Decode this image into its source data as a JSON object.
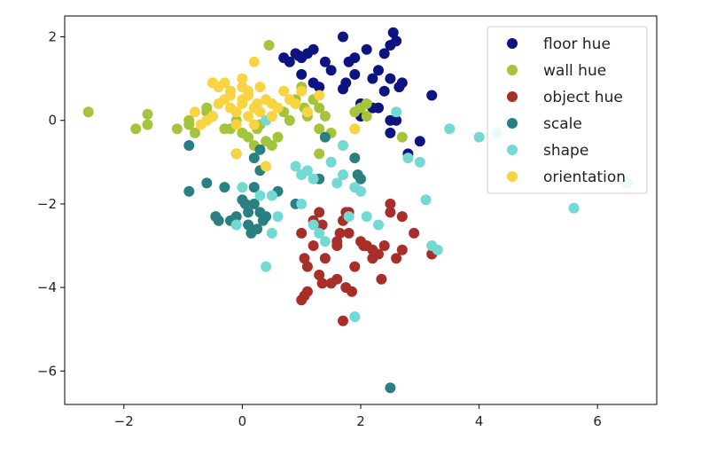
{
  "chart_data": {
    "type": "scatter",
    "title": "",
    "xlabel": "",
    "ylabel": "",
    "xlim": [
      -3.0,
      7.0
    ],
    "ylim": [
      -6.8,
      2.5
    ],
    "xticks": [
      -2,
      0,
      2,
      4,
      6
    ],
    "yticks": [
      2,
      0,
      -2,
      -4,
      -6
    ],
    "xtick_labels": [
      "−2",
      "0",
      "2",
      "4",
      "6"
    ],
    "ytick_labels": [
      "2",
      "0",
      "−2",
      "−4",
      "−6"
    ],
    "grid": false,
    "legend_position": "top-right",
    "series": [
      {
        "name": "floor hue",
        "color": "#0d1380",
        "points": [
          [
            0.9,
            1.6
          ],
          [
            0.95,
            1.55
          ],
          [
            1.1,
            1.6
          ],
          [
            1.2,
            1.7
          ],
          [
            1.4,
            1.4
          ],
          [
            0.7,
            1.5
          ],
          [
            0.8,
            1.4
          ],
          [
            1.0,
            1.5
          ],
          [
            1.5,
            1.2
          ],
          [
            1.7,
            2.0
          ],
          [
            1.8,
            1.4
          ],
          [
            1.9,
            1.5
          ],
          [
            2.1,
            1.7
          ],
          [
            2.3,
            1.2
          ],
          [
            2.4,
            1.6
          ],
          [
            2.5,
            1.8
          ],
          [
            2.55,
            2.1
          ],
          [
            2.6,
            1.9
          ],
          [
            2.5,
            1.0
          ],
          [
            2.65,
            0.8
          ],
          [
            2.7,
            0.9
          ],
          [
            2.4,
            0.7
          ],
          [
            1.75,
            0.9
          ],
          [
            1.7,
            0.75
          ],
          [
            2.0,
            0.4
          ],
          [
            2.2,
            0.3
          ],
          [
            2.3,
            0.3
          ],
          [
            3.2,
            0.6
          ],
          [
            1.3,
            0.8
          ],
          [
            1.2,
            0.9
          ],
          [
            1.0,
            1.1
          ],
          [
            2.0,
            0.1
          ],
          [
            2.5,
            0.0
          ],
          [
            2.6,
            0.0
          ],
          [
            2.5,
            -0.3
          ],
          [
            3.0,
            -0.5
          ],
          [
            2.8,
            -0.8
          ],
          [
            2.2,
            1.0
          ],
          [
            1.9,
            1.1
          ]
        ]
      },
      {
        "name": "wall hue",
        "color": "#a4c43c",
        "points": [
          [
            -2.6,
            0.2
          ],
          [
            -1.8,
            -0.2
          ],
          [
            -1.6,
            -0.1
          ],
          [
            -1.6,
            0.15
          ],
          [
            -1.1,
            -0.2
          ],
          [
            -0.9,
            -0.1
          ],
          [
            -0.9,
            0.0
          ],
          [
            -0.8,
            -0.3
          ],
          [
            -0.6,
            0.2
          ],
          [
            -0.6,
            0.3
          ],
          [
            -0.3,
            -0.2
          ],
          [
            -0.2,
            -0.2
          ],
          [
            -0.1,
            0.0
          ],
          [
            0.0,
            -0.3
          ],
          [
            0.1,
            -0.4
          ],
          [
            0.2,
            -0.6
          ],
          [
            0.25,
            -0.2
          ],
          [
            0.3,
            -0.1
          ],
          [
            0.4,
            -0.5
          ],
          [
            0.45,
            1.8
          ],
          [
            0.5,
            -0.6
          ],
          [
            0.6,
            -0.4
          ],
          [
            0.7,
            0.2
          ],
          [
            0.8,
            0.0
          ],
          [
            0.9,
            0.5
          ],
          [
            1.0,
            0.8
          ],
          [
            1.05,
            0.3
          ],
          [
            1.1,
            0.1
          ],
          [
            1.2,
            0.5
          ],
          [
            1.3,
            0.3
          ],
          [
            1.3,
            -0.2
          ],
          [
            1.4,
            0.1
          ],
          [
            1.5,
            -0.3
          ],
          [
            1.3,
            -0.8
          ],
          [
            1.9,
            0.2
          ],
          [
            2.0,
            0.3
          ],
          [
            2.1,
            0.1
          ],
          [
            2.1,
            0.4
          ],
          [
            2.7,
            -0.4
          ]
        ]
      },
      {
        "name": "object hue",
        "color": "#a82e2a",
        "points": [
          [
            1.0,
            -2.7
          ],
          [
            1.05,
            -3.3
          ],
          [
            1.1,
            -3.5
          ],
          [
            1.2,
            -3.0
          ],
          [
            1.2,
            -2.4
          ],
          [
            1.3,
            -2.2
          ],
          [
            1.35,
            -2.5
          ],
          [
            1.4,
            -3.3
          ],
          [
            1.5,
            -3.9
          ],
          [
            1.6,
            -3.8
          ],
          [
            1.6,
            -3.0
          ],
          [
            1.65,
            -2.7
          ],
          [
            1.7,
            -2.4
          ],
          [
            1.75,
            -2.2
          ],
          [
            1.8,
            -2.2
          ],
          [
            1.8,
            -2.7
          ],
          [
            1.75,
            -4.0
          ],
          [
            1.85,
            -4.1
          ],
          [
            1.7,
            -4.8
          ],
          [
            1.9,
            -3.5
          ],
          [
            2.0,
            -2.9
          ],
          [
            2.05,
            -3.0
          ],
          [
            2.1,
            -3.0
          ],
          [
            2.2,
            -3.1
          ],
          [
            2.2,
            -3.3
          ],
          [
            2.3,
            -3.2
          ],
          [
            2.35,
            -3.8
          ],
          [
            2.4,
            -3.0
          ],
          [
            2.5,
            -2.0
          ],
          [
            2.5,
            -2.2
          ],
          [
            2.6,
            -3.3
          ],
          [
            2.7,
            -2.3
          ],
          [
            2.7,
            -3.1
          ],
          [
            2.9,
            -2.7
          ],
          [
            3.2,
            -3.2
          ],
          [
            1.0,
            -4.3
          ],
          [
            1.05,
            -4.2
          ],
          [
            1.1,
            -4.1
          ],
          [
            1.3,
            -3.7
          ],
          [
            1.35,
            -3.9
          ],
          [
            1.6,
            -2.9
          ]
        ]
      },
      {
        "name": "scale",
        "color": "#2a7f80",
        "points": [
          [
            -0.9,
            -1.7
          ],
          [
            -0.6,
            -1.5
          ],
          [
            -0.45,
            -2.3
          ],
          [
            -0.4,
            -2.4
          ],
          [
            -0.3,
            -1.6
          ],
          [
            -0.2,
            -2.4
          ],
          [
            -0.1,
            -2.3
          ],
          [
            0.0,
            -1.9
          ],
          [
            0.05,
            -2.0
          ],
          [
            0.1,
            -2.2
          ],
          [
            0.1,
            -2.5
          ],
          [
            0.15,
            -2.7
          ],
          [
            0.2,
            -1.6
          ],
          [
            0.2,
            -2.0
          ],
          [
            0.3,
            -2.2
          ],
          [
            0.35,
            -2.4
          ],
          [
            0.4,
            -2.3
          ],
          [
            0.25,
            -2.6
          ],
          [
            0.3,
            -1.2
          ],
          [
            0.6,
            -1.7
          ],
          [
            0.2,
            -0.9
          ],
          [
            0.3,
            -0.7
          ],
          [
            -0.9,
            -0.6
          ],
          [
            0.9,
            -2.0
          ],
          [
            1.3,
            -1.4
          ],
          [
            1.4,
            -0.4
          ],
          [
            1.9,
            -0.9
          ],
          [
            1.95,
            -1.3
          ],
          [
            2.0,
            -1.4
          ],
          [
            2.5,
            -6.4
          ],
          [
            -0.1,
            -0.8
          ]
        ]
      },
      {
        "name": "shape",
        "color": "#72d9d3",
        "points": [
          [
            0.4,
            0.0
          ],
          [
            0.5,
            -1.8
          ],
          [
            0.6,
            -2.3
          ],
          [
            0.5,
            -2.7
          ],
          [
            0.4,
            -3.5
          ],
          [
            0.9,
            -1.1
          ],
          [
            1.0,
            -2.0
          ],
          [
            1.1,
            -1.2
          ],
          [
            1.2,
            -1.4
          ],
          [
            1.3,
            -2.7
          ],
          [
            1.4,
            -2.9
          ],
          [
            1.5,
            -1.0
          ],
          [
            1.6,
            -1.5
          ],
          [
            1.7,
            -1.3
          ],
          [
            1.7,
            -0.6
          ],
          [
            1.8,
            -2.3
          ],
          [
            1.9,
            -1.6
          ],
          [
            2.0,
            -1.7
          ],
          [
            1.9,
            -4.7
          ],
          [
            2.1,
            -2.3
          ],
          [
            2.3,
            -2.5
          ],
          [
            2.6,
            0.2
          ],
          [
            2.8,
            -0.9
          ],
          [
            3.0,
            -1.0
          ],
          [
            3.1,
            -1.9
          ],
          [
            3.2,
            -3.0
          ],
          [
            3.3,
            -3.1
          ],
          [
            3.5,
            -0.2
          ],
          [
            4.0,
            -0.4
          ],
          [
            4.3,
            -0.3
          ],
          [
            5.6,
            -2.1
          ],
          [
            6.5,
            -1.5
          ],
          [
            1.2,
            -2.5
          ],
          [
            0.0,
            -1.6
          ],
          [
            -0.1,
            -2.5
          ],
          [
            0.3,
            -1.8
          ],
          [
            1.0,
            -1.3
          ]
        ]
      },
      {
        "name": "orientation",
        "color": "#f8d342",
        "points": [
          [
            -0.8,
            0.2
          ],
          [
            -0.7,
            -0.1
          ],
          [
            -0.6,
            0.0
          ],
          [
            -0.5,
            0.1
          ],
          [
            -0.5,
            0.9
          ],
          [
            -0.4,
            0.8
          ],
          [
            -0.3,
            0.5
          ],
          [
            -0.3,
            0.9
          ],
          [
            -0.2,
            0.3
          ],
          [
            -0.2,
            0.6
          ],
          [
            -0.1,
            0.2
          ],
          [
            -0.1,
            -0.1
          ],
          [
            -0.1,
            -0.8
          ],
          [
            0.0,
            0.4
          ],
          [
            0.0,
            0.8
          ],
          [
            0.0,
            0.5
          ],
          [
            0.0,
            1.0
          ],
          [
            0.1,
            0.6
          ],
          [
            0.1,
            0.1
          ],
          [
            0.2,
            0.3
          ],
          [
            0.2,
            1.4
          ],
          [
            0.25,
            0.4
          ],
          [
            0.3,
            0.8
          ],
          [
            0.3,
            0.2
          ],
          [
            0.4,
            0.5
          ],
          [
            0.4,
            -1.1
          ],
          [
            0.5,
            0.1
          ],
          [
            0.5,
            0.4
          ],
          [
            0.6,
            0.3
          ],
          [
            0.7,
            0.7
          ],
          [
            0.8,
            0.5
          ],
          [
            0.9,
            0.4
          ],
          [
            1.0,
            0.7
          ],
          [
            1.1,
            0.2
          ],
          [
            1.3,
            0.6
          ],
          [
            1.9,
            -0.2
          ],
          [
            0.1,
            0.7
          ],
          [
            -0.2,
            0.7
          ],
          [
            0.2,
            -0.1
          ],
          [
            -0.4,
            0.4
          ]
        ]
      }
    ]
  }
}
